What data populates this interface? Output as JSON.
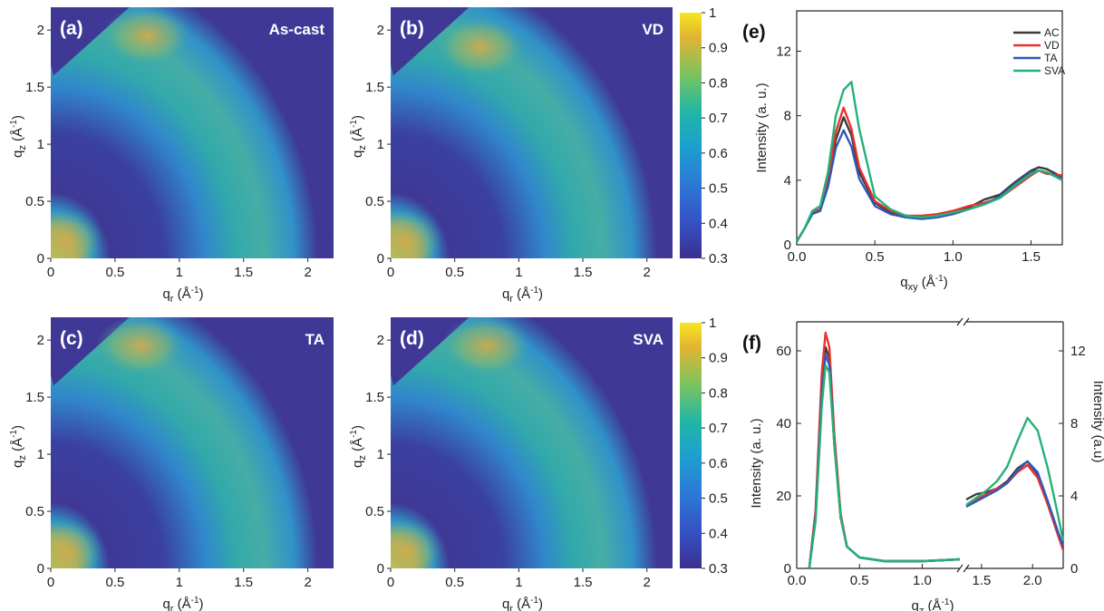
{
  "heatmaps": [
    {
      "label": "(a)",
      "condition": "As-cast",
      "x_ticks": [
        "0",
        "0.5",
        "1",
        "1.5",
        "2"
      ],
      "y_ticks": [
        "0",
        "0.5",
        "1",
        "1.5",
        "2"
      ],
      "xlabel": "q_r (Å^-1)",
      "ylabel": "q_z (Å^-1)"
    },
    {
      "label": "(b)",
      "condition": "VD",
      "x_ticks": [
        "0",
        "0.5",
        "1",
        "1.5",
        "2"
      ],
      "y_ticks": [
        "0",
        "0.5",
        "1",
        "1.5",
        "2"
      ],
      "xlabel": "q_r (Å^-1)",
      "ylabel": "q_z (Å^-1)"
    },
    {
      "label": "(c)",
      "condition": "TA",
      "x_ticks": [
        "0",
        "0.5",
        "1",
        "1.5",
        "2"
      ],
      "y_ticks": [
        "0",
        "0.5",
        "1",
        "1.5",
        "2"
      ],
      "xlabel": "q_r (Å^-1)",
      "ylabel": "q_z (Å^-1)"
    },
    {
      "label": "(d)",
      "condition": "SVA",
      "x_ticks": [
        "0",
        "0.5",
        "1",
        "1.5",
        "2"
      ],
      "y_ticks": [
        "0",
        "0.5",
        "1",
        "1.5",
        "2"
      ],
      "xlabel": "q_r (Å^-1)",
      "ylabel": "q_z (Å^-1)"
    }
  ],
  "colorbar": {
    "ticks": [
      "1",
      "0.9",
      "0.8",
      "0.7",
      "0.6",
      "0.5",
      "0.4",
      "0.3"
    ],
    "range": [
      0.3,
      1
    ]
  },
  "colors": {
    "AC": "#3a3a3a",
    "VD": "#e8322e",
    "TA": "#2f59b8",
    "SVA": "#26b075",
    "bg": "#3b2f8f"
  },
  "chart_data": [
    {
      "type": "heatmap",
      "panel": "(a)",
      "condition": "As-cast",
      "xlabel": "q_r (Å^-1)",
      "ylabel": "q_z (Å^-1)",
      "xlim": [
        0,
        2.2
      ],
      "ylim": [
        0,
        2.2
      ],
      "colorbar_range": [
        0.3,
        1
      ],
      "features": {
        "inner_ring_q": 0.3,
        "outer_ring_q": 1.55,
        "arc_peak_qr": 0.65,
        "arc_peak_qz": 2.0
      }
    },
    {
      "type": "heatmap",
      "panel": "(b)",
      "condition": "VD",
      "xlabel": "q_r (Å^-1)",
      "ylabel": "q_z (Å^-1)",
      "xlim": [
        0,
        2.2
      ],
      "ylim": [
        0,
        2.2
      ],
      "colorbar_range": [
        0.3,
        1
      ],
      "features": {
        "inner_ring_q": 0.3,
        "outer_ring_q": 1.55,
        "arc_peak_qr": 0.6,
        "arc_peak_qz": 1.9
      }
    },
    {
      "type": "heatmap",
      "panel": "(c)",
      "condition": "TA",
      "xlabel": "q_r (Å^-1)",
      "ylabel": "q_z (Å^-1)",
      "xlim": [
        0,
        2.2
      ],
      "ylim": [
        0,
        2.2
      ],
      "colorbar_range": [
        0.3,
        1
      ],
      "features": {
        "inner_ring_q": 0.3,
        "outer_ring_q": 1.55,
        "arc_peak_qr": 0.6,
        "arc_peak_qz": 2.0
      }
    },
    {
      "type": "heatmap",
      "panel": "(d)",
      "condition": "SVA",
      "xlabel": "q_r (Å^-1)",
      "ylabel": "q_z (Å^-1)",
      "xlim": [
        0,
        2.2
      ],
      "ylim": [
        0,
        2.2
      ],
      "colorbar_range": [
        0.3,
        1
      ],
      "features": {
        "inner_ring_q": 0.3,
        "outer_ring_q": 1.55,
        "arc_peak_qr": 0.65,
        "arc_peak_qz": 2.0
      }
    },
    {
      "type": "line",
      "panel": "(e)",
      "xlabel": "q_xy (Å^-1)",
      "ylabel": "Intensity (a. u.)",
      "xlim": [
        0,
        1.7
      ],
      "ylim": [
        0,
        14.5
      ],
      "x_ticks": [
        "0.0",
        "0.5",
        "1.0",
        "1.5"
      ],
      "y_ticks": [
        "0",
        "4",
        "8",
        "12"
      ],
      "legend": "top-right",
      "x": [
        0.0,
        0.05,
        0.1,
        0.15,
        0.2,
        0.25,
        0.3,
        0.35,
        0.4,
        0.5,
        0.6,
        0.7,
        0.8,
        0.9,
        1.0,
        1.1,
        1.2,
        1.3,
        1.4,
        1.5,
        1.55,
        1.6,
        1.7
      ],
      "series": [
        {
          "name": "AC",
          "values": [
            0.2,
            1.0,
            2.0,
            2.2,
            3.8,
            6.5,
            7.9,
            6.8,
            4.5,
            2.6,
            2.0,
            1.8,
            1.7,
            1.8,
            2.0,
            2.3,
            2.8,
            3.1,
            3.9,
            4.6,
            4.8,
            4.7,
            4.2
          ]
        },
        {
          "name": "VD",
          "values": [
            0.2,
            1.0,
            2.0,
            2.2,
            4.0,
            7.0,
            8.5,
            7.2,
            4.8,
            2.7,
            2.1,
            1.8,
            1.8,
            1.9,
            2.1,
            2.4,
            2.6,
            2.9,
            3.6,
            4.3,
            4.6,
            4.4,
            4.3
          ]
        },
        {
          "name": "TA",
          "values": [
            0.2,
            1.0,
            1.9,
            2.1,
            3.6,
            6.0,
            7.1,
            6.1,
            4.1,
            2.4,
            1.9,
            1.7,
            1.6,
            1.7,
            1.9,
            2.2,
            2.5,
            3.0,
            3.8,
            4.5,
            4.6,
            4.5,
            4.1
          ]
        },
        {
          "name": "SVA",
          "values": [
            0.2,
            1.0,
            2.1,
            2.4,
            4.5,
            8.0,
            9.6,
            10.1,
            7.2,
            3.0,
            2.2,
            1.8,
            1.7,
            1.8,
            2.0,
            2.2,
            2.5,
            2.9,
            3.7,
            4.4,
            4.6,
            4.5,
            4.0
          ]
        }
      ]
    },
    {
      "type": "line",
      "panel": "(f)",
      "xlabel": "q_z (Å^-1)",
      "ylabel": "Intensity (a. u.)",
      "ylabel_right": "Intensity (a.u)",
      "x_break": [
        1.3,
        1.35
      ],
      "x_ticks": [
        "0.0",
        "0.5",
        "1.0",
        "1.5",
        "2.0"
      ],
      "y_ticks": [
        "0",
        "20",
        "40",
        "60"
      ],
      "y_ticks_right": [
        "0",
        "4",
        "8",
        "12"
      ],
      "ylim": [
        0,
        68
      ],
      "ylim_right": [
        0,
        13.6
      ],
      "segment_left": {
        "xlim": [
          0,
          1.3
        ],
        "x": [
          0.1,
          0.15,
          0.2,
          0.23,
          0.26,
          0.3,
          0.35,
          0.4,
          0.5,
          0.7,
          1.0,
          1.3
        ],
        "series": [
          {
            "name": "AC",
            "values": [
              0,
              15,
              50,
              61,
              58,
              35,
              14,
              6,
              3,
              2,
              2,
              2.5
            ]
          },
          {
            "name": "VD",
            "values": [
              0,
              16,
              54,
              65,
              61,
              37,
              15,
              6,
              3,
              2,
              2,
              2.5
            ]
          },
          {
            "name": "TA",
            "values": [
              0,
              14,
              48,
              59,
              56,
              34,
              14,
              6,
              3,
              2,
              2,
              2.5
            ]
          },
          {
            "name": "SVA",
            "values": [
              0,
              13,
              45,
              56,
              54,
              34,
              14,
              6,
              3,
              2,
              2,
              2.5
            ]
          }
        ]
      },
      "segment_right": {
        "xlim": [
          1.35,
          2.3
        ],
        "x": [
          1.35,
          1.45,
          1.55,
          1.65,
          1.75,
          1.85,
          1.95,
          2.05,
          2.15,
          2.25,
          2.3
        ],
        "series": [
          {
            "name": "AC",
            "values": [
              3.8,
              4.1,
              4.2,
              4.4,
              4.8,
              5.5,
              5.9,
              5.2,
              3.6,
              1.9,
              1.1
            ]
          },
          {
            "name": "VD",
            "values": [
              3.5,
              3.8,
              4.1,
              4.4,
              4.7,
              5.3,
              5.7,
              5.0,
              3.5,
              1.8,
              1.0
            ]
          },
          {
            "name": "TA",
            "values": [
              3.4,
              3.7,
              4.0,
              4.3,
              4.7,
              5.4,
              5.9,
              5.3,
              3.7,
              2.0,
              1.2
            ]
          },
          {
            "name": "SVA",
            "values": [
              3.5,
              3.9,
              4.3,
              4.8,
              5.6,
              7.0,
              8.3,
              7.6,
              5.5,
              2.9,
              1.5
            ]
          }
        ]
      }
    }
  ]
}
